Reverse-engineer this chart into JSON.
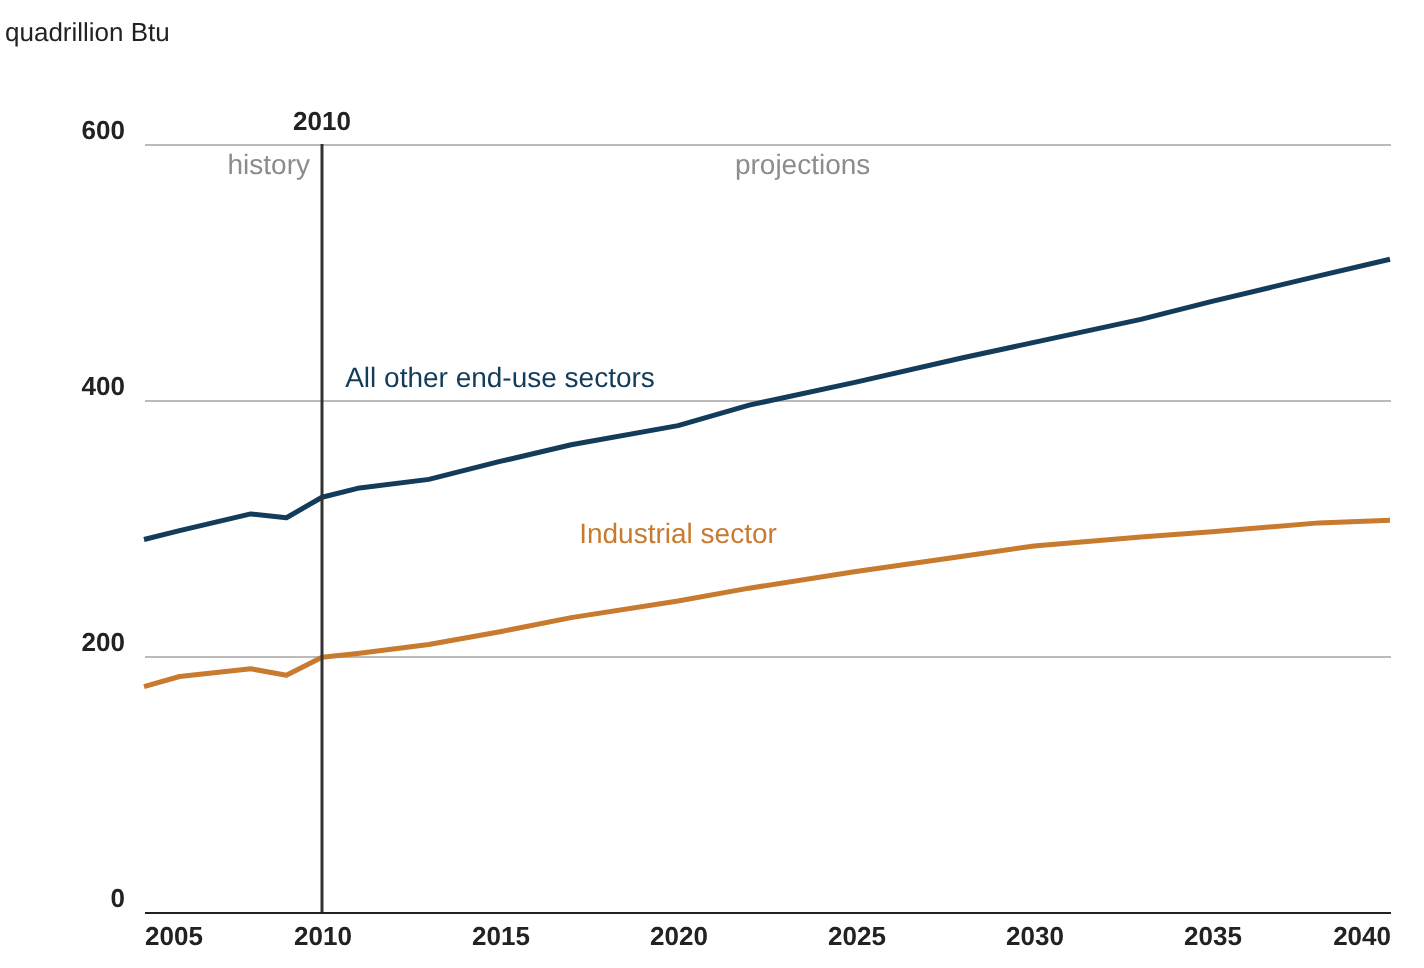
{
  "chart_data": {
    "type": "line",
    "ylabel": "quadrillion Btu",
    "x": [
      2005,
      2006,
      2008,
      2009,
      2010,
      2011,
      2013,
      2015,
      2017,
      2020,
      2022,
      2025,
      2028,
      2030,
      2033,
      2035,
      2038,
      2040
    ],
    "series": [
      {
        "name": "All other end-use sectors",
        "color": "#123c5a",
        "values": [
          291,
          298,
          311,
          308,
          324,
          331,
          338,
          352,
          365,
          380,
          396,
          414,
          433,
          445,
          463,
          477,
          497,
          510
        ]
      },
      {
        "name": "Industrial sector",
        "color": "#c87a2e",
        "values": [
          176,
          184,
          190,
          185,
          199,
          202,
          209,
          219,
          230,
          243,
          253,
          266,
          278,
          286,
          293,
          297,
          304,
          306
        ]
      }
    ],
    "xlim": [
      2005,
      2040
    ],
    "xticks": [
      2005,
      2010,
      2015,
      2020,
      2025,
      2030,
      2035,
      2040
    ],
    "ylim": [
      0,
      600
    ],
    "yticks": [
      0,
      200,
      400,
      600
    ],
    "grid": "y",
    "legend": false,
    "marker": "none",
    "line_style": "solid",
    "ref_lines": [
      {
        "axis": "x",
        "value": 2010,
        "label": "2010",
        "color": "#333333"
      }
    ],
    "annotations": [
      "history",
      "projections"
    ]
  }
}
